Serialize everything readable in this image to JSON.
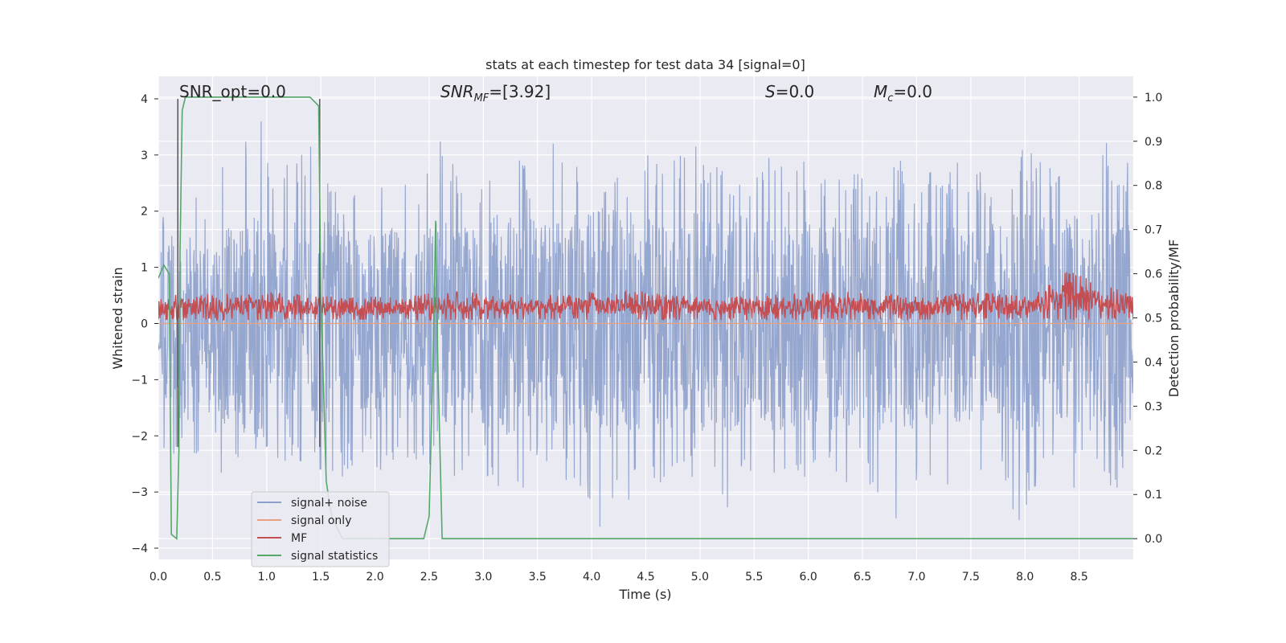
{
  "chart_data": {
    "type": "line",
    "title": "stats at each timestep for test data 34 [signal=0]",
    "xlabel": "Time (s)",
    "ylabel": "Whitened strain",
    "y2label": "Detection probability/MF",
    "xlim": [
      0.0,
      9.0
    ],
    "ylim": [
      -4.2,
      4.4
    ],
    "y2lim": [
      -0.047,
      1.047
    ],
    "xticks": [
      0.0,
      0.5,
      1.0,
      1.5,
      2.0,
      2.5,
      3.0,
      3.5,
      4.0,
      4.5,
      5.0,
      5.5,
      6.0,
      6.5,
      7.0,
      7.5,
      8.0,
      8.5
    ],
    "xtick_labels": [
      "0.0",
      "0.5",
      "1.0",
      "1.5",
      "2.0",
      "2.5",
      "3.0",
      "3.5",
      "4.0",
      "4.5",
      "5.0",
      "5.5",
      "6.0",
      "6.5",
      "7.0",
      "7.5",
      "8.0",
      "8.5"
    ],
    "yticks": [
      -4,
      -3,
      -2,
      -1,
      0,
      1,
      2,
      3,
      4
    ],
    "ytick_labels": [
      "−4",
      "−3",
      "−2",
      "−1",
      "0",
      "1",
      "2",
      "3",
      "4"
    ],
    "y2ticks": [
      0.0,
      0.1,
      0.2,
      0.3,
      0.4,
      0.5,
      0.6,
      0.7,
      0.8,
      0.9,
      1.0
    ],
    "y2tick_labels": [
      "0.0",
      "0.1",
      "0.2",
      "0.3",
      "0.4",
      "0.5",
      "0.6",
      "0.7",
      "0.8",
      "0.9",
      "1.0"
    ],
    "grid": true,
    "legend_placement": "lower-left",
    "annotations": {
      "snr_opt": "SNR_opt=0.0",
      "snr_mf_prefix": "SNR",
      "snr_mf_sub": "MF",
      "snr_mf_value": "=[3.92]",
      "s_sym": "S",
      "s_value": "=0.0",
      "mc_sym": "M",
      "mc_sub": "c",
      "mc_value": "=0.0"
    },
    "vertical_markers": [
      0.18,
      1.49
    ],
    "series": [
      {
        "name": "signal+ noise",
        "color": "#8da0cb",
        "axis": "left",
        "envelope": {
          "x": [
            0.0,
            0.1,
            0.2,
            0.3,
            0.4,
            0.5,
            0.6,
            0.7,
            0.8,
            0.9,
            1.0,
            1.2,
            1.4,
            1.6,
            1.8,
            2.0,
            2.2,
            2.4,
            2.6,
            2.8,
            3.0,
            3.2,
            3.4,
            3.6,
            3.8,
            4.0,
            4.25,
            4.5,
            4.75,
            5.0,
            5.25,
            5.5,
            5.75,
            6.0,
            6.25,
            6.5,
            6.75,
            6.85,
            7.0,
            7.25,
            7.5,
            7.75,
            7.95,
            8.25,
            8.5,
            8.75,
            9.0
          ],
          "high": [
            1.9,
            2.1,
            2.2,
            3.0,
            2.4,
            2.6,
            3.0,
            2.5,
            3.3,
            4.0,
            3.2,
            2.9,
            3.5,
            2.7,
            2.4,
            2.5,
            2.8,
            2.2,
            3.5,
            2.7,
            2.8,
            3.1,
            2.9,
            3.3,
            3.1,
            2.9,
            2.8,
            3.3,
            3.0,
            3.3,
            2.9,
            2.8,
            3.2,
            2.9,
            3.0,
            2.7,
            3.0,
            2.9,
            2.6,
            2.8,
            3.0,
            2.7,
            3.1,
            3.0,
            3.2,
            3.3,
            2.8
          ],
          "low": [
            -1.8,
            -3.0,
            -2.1,
            -3.0,
            -2.4,
            -2.5,
            -2.8,
            -2.5,
            -2.6,
            -2.7,
            -2.5,
            -2.6,
            -2.5,
            -2.9,
            -2.6,
            -2.7,
            -2.6,
            -2.5,
            -2.9,
            -2.7,
            -2.8,
            -3.3,
            -2.9,
            -2.7,
            -2.9,
            -3.7,
            -3.5,
            -2.9,
            -2.8,
            -3.0,
            -3.3,
            -3.0,
            -2.9,
            -2.9,
            -3.0,
            -2.8,
            -3.2,
            -3.8,
            -3.0,
            -2.9,
            -2.8,
            -2.8,
            -3.6,
            -2.9,
            -3.0,
            -3.0,
            -2.9
          ]
        }
      },
      {
        "name": "signal only",
        "color": "#e8a07f",
        "axis": "left",
        "x": [
          0.0,
          9.0
        ],
        "y": [
          0.0,
          0.0
        ]
      },
      {
        "name": "MF",
        "color": "#c44e52",
        "axis": "right",
        "envelope": {
          "x": [
            0.0,
            0.5,
            1.0,
            1.5,
            2.0,
            2.5,
            3.0,
            3.5,
            4.0,
            4.5,
            5.0,
            5.5,
            6.0,
            6.5,
            7.0,
            7.5,
            8.0,
            8.4,
            9.0
          ],
          "high": [
            0.55,
            0.56,
            0.56,
            0.55,
            0.55,
            0.56,
            0.56,
            0.55,
            0.56,
            0.56,
            0.55,
            0.55,
            0.56,
            0.56,
            0.55,
            0.56,
            0.55,
            0.61,
            0.55
          ],
          "low": [
            0.495,
            0.495,
            0.495,
            0.495,
            0.495,
            0.495,
            0.495,
            0.495,
            0.495,
            0.495,
            0.495,
            0.495,
            0.495,
            0.495,
            0.495,
            0.495,
            0.495,
            0.495,
            0.495
          ]
        }
      },
      {
        "name": "signal statistics",
        "color": "#55a868",
        "axis": "right",
        "x": [
          0.0,
          0.05,
          0.1,
          0.12,
          0.17,
          0.19,
          0.2,
          0.22,
          0.25,
          0.3,
          1.0,
          1.4,
          1.48,
          1.5,
          1.55,
          1.6,
          1.7,
          2.0,
          2.3,
          2.45,
          2.5,
          2.54,
          2.56,
          2.58,
          2.62,
          3.0,
          5.0,
          7.0,
          9.0
        ],
        "y": [
          0.59,
          0.62,
          0.6,
          0.01,
          0.0,
          0.2,
          0.65,
          0.97,
          1.0,
          1.0,
          1.0,
          1.0,
          0.98,
          0.55,
          0.13,
          0.05,
          0.0,
          0.0,
          0.0,
          0.0,
          0.05,
          0.45,
          0.72,
          0.4,
          0.0,
          0.0,
          0.0,
          0.0,
          0.0
        ]
      }
    ]
  }
}
